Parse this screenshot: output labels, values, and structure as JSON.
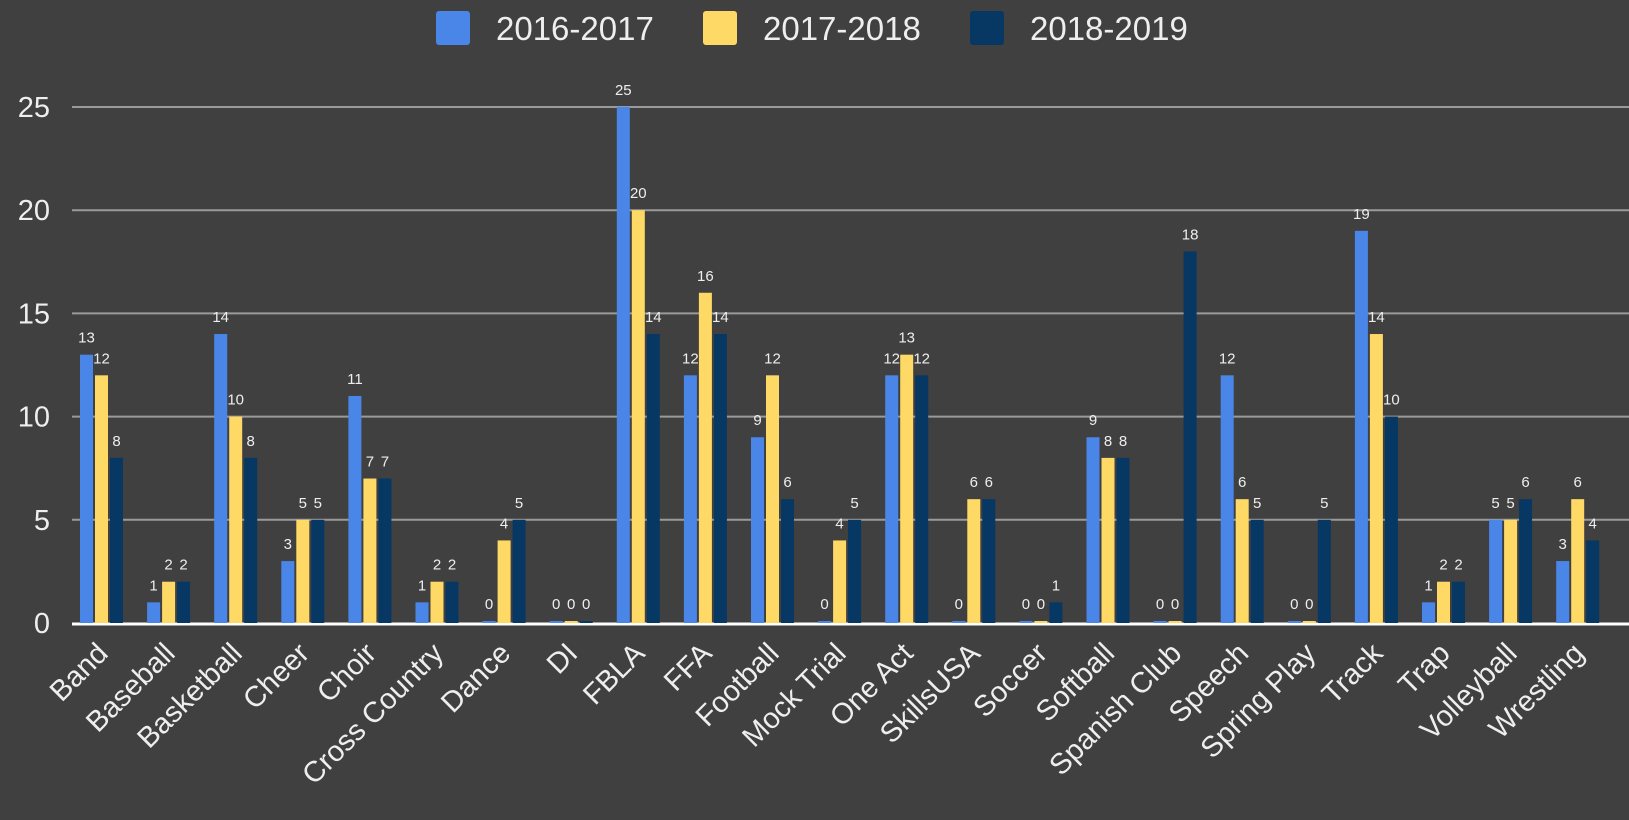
{
  "chart_data": {
    "type": "bar",
    "title": "",
    "xlabel": "",
    "ylabel": "",
    "ylim": [
      0,
      25
    ],
    "yticks": [
      0,
      5,
      10,
      15,
      20,
      25
    ],
    "grid": true,
    "legend_position": "top",
    "categories": [
      "Band",
      "Baseball",
      "Basketball",
      "Cheer",
      "Choir",
      "Cross Country",
      "Dance",
      "DI",
      "FBLA",
      "FFA",
      "Football",
      "Mock Trial",
      "One Act",
      "SkillsUSA",
      "Soccer",
      "Softball",
      "Spanish Club",
      "Speech",
      "Spring Play",
      "Track",
      "Trap",
      "Volleyball",
      "Wrestling"
    ],
    "series": [
      {
        "name": "2016-2017",
        "color": "#4a86e8",
        "values": [
          13,
          1,
          14,
          3,
          11,
          1,
          0,
          0,
          25,
          12,
          9,
          0,
          12,
          0,
          0,
          9,
          0,
          12,
          0,
          19,
          1,
          5,
          3
        ]
      },
      {
        "name": "2017-2018",
        "color": "#ffd966",
        "values": [
          12,
          2,
          10,
          5,
          7,
          2,
          4,
          0,
          20,
          16,
          12,
          4,
          13,
          6,
          0,
          8,
          0,
          6,
          0,
          14,
          2,
          5,
          6
        ]
      },
      {
        "name": "2018-2019",
        "color": "#073763",
        "values": [
          8,
          2,
          8,
          5,
          7,
          2,
          5,
          0,
          14,
          14,
          6,
          5,
          12,
          6,
          1,
          8,
          18,
          5,
          5,
          10,
          2,
          6,
          4
        ]
      }
    ]
  }
}
